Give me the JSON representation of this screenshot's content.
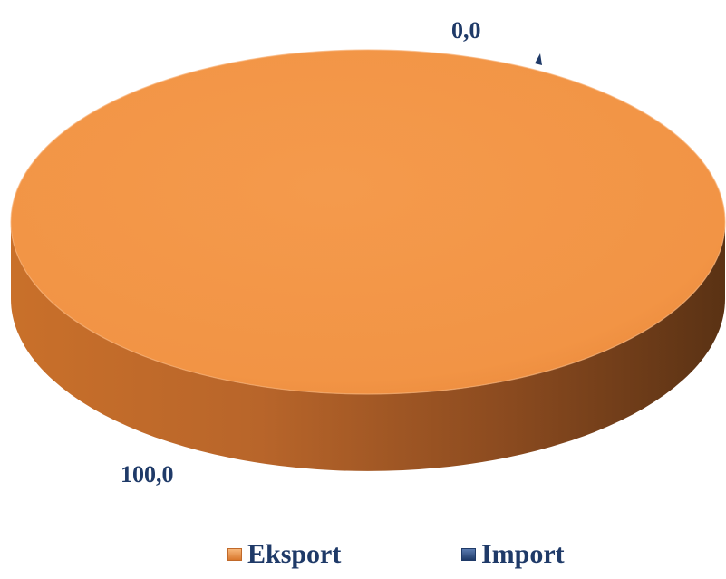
{
  "chart_data": {
    "type": "pie",
    "style": "3d",
    "series": [
      {
        "name": "Eksport",
        "value": 100.0,
        "label": "100,0",
        "color": "#f29445"
      },
      {
        "name": "Import",
        "value": 0.0,
        "label": "0,0",
        "color": "#1f3a68"
      }
    ],
    "legend": {
      "position": "bottom",
      "items": [
        "Eksport",
        "Import"
      ]
    }
  }
}
